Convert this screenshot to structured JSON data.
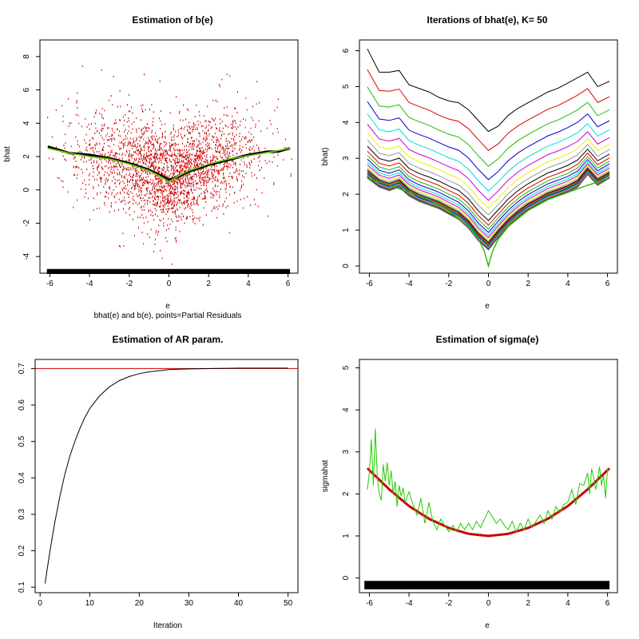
{
  "chart_data": [
    {
      "type": "scatter",
      "title": "Estimation of b(e)",
      "subtitle": "bhat(e) and b(e), points=Partial Residuals",
      "xlabel": "e",
      "ylabel": "bhat",
      "xlim": [
        -6.5,
        6.5
      ],
      "ylim": [
        -5,
        9
      ],
      "xticks": [
        -6,
        -4,
        -2,
        0,
        2,
        4,
        6
      ],
      "yticks": [
        -4,
        -2,
        0,
        2,
        4,
        6,
        8
      ],
      "colors": {
        "points": "#cc0000",
        "estimate": "#000000",
        "true": "#66cc00",
        "rug": "#000000"
      },
      "series": [
        {
          "x": [
            -6.1,
            -5,
            -4,
            -3,
            -2,
            -1,
            -0.5,
            0,
            0.5,
            1,
            2,
            3,
            4,
            5,
            5.5,
            6.1
          ],
          "values": [
            2.6,
            2.2,
            2.1,
            1.9,
            1.6,
            1.2,
            0.9,
            0.6,
            0.8,
            1.1,
            1.5,
            1.8,
            2.1,
            2.3,
            2.3,
            2.5
          ]
        },
        {
          "x": [
            -6.1,
            -5,
            -4,
            -3,
            -2,
            -1,
            -0.5,
            0,
            0.5,
            1,
            2,
            3,
            4,
            5,
            6.1
          ],
          "values": [
            2.5,
            2.2,
            2.0,
            1.85,
            1.55,
            1.15,
            0.85,
            0.5,
            0.85,
            1.15,
            1.55,
            1.85,
            2.05,
            2.25,
            2.5
          ]
        }
      ]
    },
    {
      "type": "line",
      "title": "Iterations of bhat(e), K= 50",
      "xlabel": "e",
      "ylabel": "bhat)",
      "xlim": [
        -6.5,
        6.5
      ],
      "ylim": [
        -0.2,
        6.3
      ],
      "xticks": [
        -6,
        -4,
        -2,
        0,
        2,
        4,
        6
      ],
      "yticks": [
        0,
        1,
        2,
        3,
        4,
        5,
        6
      ],
      "iterations": 50,
      "colors": [
        "#000000",
        "#dd0000",
        "#22bb00",
        "#0000cc",
        "#00dddd",
        "#cc00cc",
        "#eeee00",
        "#999999"
      ],
      "first_curve": {
        "x": [
          -6.1,
          -5.5,
          -5,
          -4.5,
          -4,
          -3.5,
          -3,
          -2.5,
          -2,
          -1.5,
          -1,
          -0.5,
          0,
          0.5,
          1,
          1.5,
          2,
          2.5,
          3,
          3.5,
          4,
          4.5,
          5,
          5.5,
          6.1
        ],
        "values": [
          6.05,
          5.4,
          5.4,
          5.45,
          5.05,
          4.95,
          4.85,
          4.7,
          4.6,
          4.55,
          4.35,
          4.05,
          3.75,
          3.9,
          4.2,
          4.4,
          4.55,
          4.7,
          4.85,
          4.95,
          5.1,
          5.25,
          5.4,
          5.0,
          5.15
        ]
      },
      "limit_curve": {
        "x": [
          -6.1,
          -5.5,
          -5,
          -4.5,
          -4,
          -3.5,
          -3,
          -2.5,
          -2,
          -1.5,
          -1,
          -0.5,
          0,
          0.5,
          1,
          1.5,
          2,
          2.5,
          3,
          3.5,
          4,
          4.5,
          5,
          5.5,
          6.1
        ],
        "values": [
          2.45,
          2.2,
          2.1,
          2.2,
          1.95,
          1.8,
          1.7,
          1.6,
          1.45,
          1.3,
          1.05,
          0.7,
          0.45,
          0.8,
          1.1,
          1.35,
          1.55,
          1.7,
          1.85,
          1.95,
          2.05,
          2.2,
          2.55,
          2.25,
          2.45
        ]
      },
      "true_curve": {
        "x": [
          -6.1,
          -5,
          -4,
          -3,
          -2,
          -1,
          -0.5,
          -0.2,
          0,
          0.2,
          0.5,
          1,
          2,
          3,
          4,
          5,
          6.1
        ],
        "values": [
          2.45,
          2.25,
          2.05,
          1.85,
          1.55,
          1.1,
          0.75,
          0.4,
          0.0,
          0.4,
          0.75,
          1.1,
          1.55,
          1.85,
          2.05,
          2.25,
          2.45
        ]
      }
    },
    {
      "type": "line",
      "title": "Estimation of AR param.",
      "xlabel": "Iteration",
      "ylabel": "",
      "xlim": [
        -1,
        52
      ],
      "ylim": [
        0.085,
        0.725
      ],
      "xticks": [
        0,
        10,
        20,
        30,
        40,
        50
      ],
      "yticks": [
        0.1,
        0.2,
        0.3,
        0.4,
        0.5,
        0.6,
        0.7
      ],
      "reference": 0.7,
      "colors": {
        "estimate": "#000000",
        "reference": "#cc0000"
      },
      "x": [
        1,
        2,
        3,
        4,
        5,
        6,
        7,
        8,
        9,
        10,
        12,
        14,
        16,
        18,
        20,
        22,
        24,
        26,
        28,
        30,
        35,
        40,
        45,
        50
      ],
      "values": [
        0.11,
        0.2,
        0.28,
        0.35,
        0.41,
        0.46,
        0.5,
        0.535,
        0.565,
        0.59,
        0.625,
        0.65,
        0.667,
        0.678,
        0.686,
        0.691,
        0.694,
        0.697,
        0.698,
        0.699,
        0.7,
        0.701,
        0.701,
        0.701
      ]
    },
    {
      "type": "line",
      "title": "Estimation of sigma(e)",
      "xlabel": "e",
      "ylabel": "sigmahat",
      "xlim": [
        -6.5,
        6.5
      ],
      "ylim": [
        -0.35,
        5.2
      ],
      "xticks": [
        -6,
        -4,
        -2,
        0,
        2,
        4,
        6
      ],
      "yticks": [
        0,
        1,
        2,
        3,
        4,
        5
      ],
      "colors": {
        "estimate": "#22cc00",
        "true": "#cc0000",
        "rug": "#000000"
      },
      "series": [
        {
          "x": [
            -6.1,
            -6,
            -5.9,
            -5.8,
            -5.7,
            -5.6,
            -5.5,
            -5.4,
            -5.3,
            -5.2,
            -5.1,
            -5,
            -4.9,
            -4.8,
            -4.7,
            -4.6,
            -4.5,
            -4.4,
            -4.3,
            -4.2,
            -4,
            -3.8,
            -3.6,
            -3.4,
            -3.2,
            -3,
            -2.8,
            -2.6,
            -2.4,
            -2.2,
            -2,
            -1.8,
            -1.6,
            -1.4,
            -1.2,
            -1,
            -0.8,
            -0.6,
            -0.4,
            -0.2,
            0,
            0.2,
            0.4,
            0.6,
            0.8,
            1,
            1.2,
            1.4,
            1.6,
            1.8,
            2,
            2.2,
            2.4,
            2.6,
            2.8,
            3,
            3.2,
            3.4,
            3.6,
            3.8,
            4,
            4.2,
            4.4,
            4.6,
            4.8,
            5,
            5.1,
            5.2,
            5.3,
            5.4,
            5.5,
            5.6,
            5.7,
            5.8,
            5.9,
            6,
            6.1
          ],
          "values": [
            2.1,
            2.5,
            3.3,
            2.2,
            3.55,
            2.4,
            2.0,
            1.85,
            2.7,
            2.3,
            2.75,
            2.2,
            2.55,
            2.0,
            2.3,
            1.7,
            2.2,
            1.95,
            2.15,
            1.8,
            2.05,
            1.75,
            1.5,
            1.9,
            1.3,
            1.8,
            1.35,
            1.15,
            1.4,
            1.25,
            1.1,
            1.25,
            1.1,
            1.3,
            1.15,
            1.3,
            1.15,
            1.35,
            1.2,
            1.4,
            1.6,
            1.45,
            1.3,
            1.4,
            1.25,
            1.15,
            1.35,
            1.1,
            1.3,
            1.15,
            1.4,
            1.2,
            1.35,
            1.5,
            1.3,
            1.6,
            1.4,
            1.7,
            1.55,
            1.75,
            1.8,
            2.1,
            1.75,
            2.25,
            2.2,
            2.5,
            2.0,
            2.6,
            2.4,
            2.1,
            2.35,
            2.65,
            2.2,
            2.45,
            1.9,
            2.6,
            2.55
          ]
        },
        {
          "x": [
            -6.1,
            -5,
            -4,
            -3,
            -2,
            -1,
            0,
            1,
            2,
            3,
            4,
            5,
            6.1
          ],
          "values": [
            2.61,
            2.11,
            1.71,
            1.41,
            1.19,
            1.05,
            1.0,
            1.05,
            1.19,
            1.41,
            1.71,
            2.11,
            2.61
          ]
        }
      ]
    }
  ]
}
